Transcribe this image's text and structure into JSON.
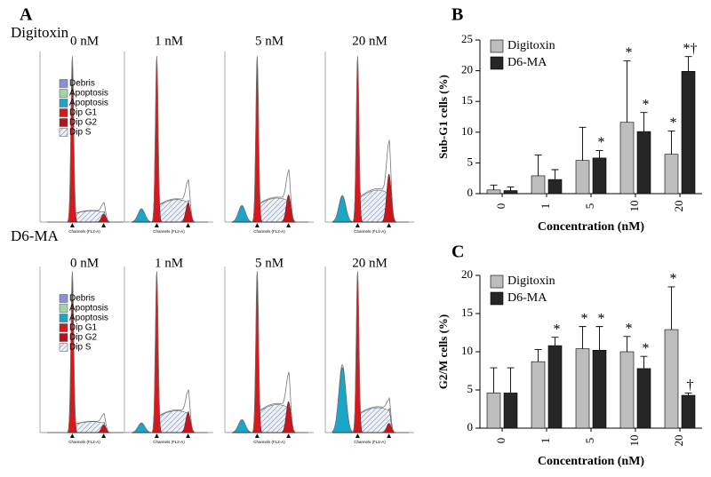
{
  "panel_a": {
    "label": "A",
    "rows": [
      {
        "name": "Digitoxin",
        "panels": [
          "0 nM",
          "1 nM",
          "5 nM",
          "20  nM"
        ]
      },
      {
        "name": "D6-MA",
        "panels": [
          "0 nM",
          "1 nM",
          "5 nM",
          "20  nM"
        ]
      }
    ],
    "legend": [
      "Debris",
      "Apoptosis",
      "Apoptosis",
      "Dip G1",
      "Dip G2",
      "Dip S"
    ],
    "axis_label": "Channels (FL2-A)"
  },
  "chart_data": [
    {
      "type": "bar",
      "panel_label": "B",
      "y_label": "Sub-G1 cells (%)",
      "x_label": "Concentration (nM)",
      "categories": [
        "0",
        "1",
        "5",
        "10",
        "20"
      ],
      "ylim": [
        0,
        25
      ],
      "yticks": [
        0,
        5,
        10,
        15,
        20,
        25
      ],
      "series": [
        {
          "name": "Digitoxin",
          "color": "#bdbdbd",
          "values": [
            0.6,
            2.9,
            5.4,
            11.6,
            6.4
          ],
          "errors": [
            0.8,
            3.4,
            5.4,
            10.0,
            3.8
          ],
          "annotations": [
            null,
            null,
            null,
            "*",
            "*"
          ]
        },
        {
          "name": "D6-MA",
          "color": "#262626",
          "values": [
            0.5,
            2.3,
            5.8,
            10.1,
            19.9
          ],
          "errors": [
            0.6,
            1.6,
            1.2,
            3.1,
            2.4
          ],
          "annotations": [
            null,
            null,
            "*",
            "*",
            "*†"
          ]
        }
      ]
    },
    {
      "type": "bar",
      "panel_label": "C",
      "y_label": "G2/M cells (%)",
      "x_label": "Concentration (nM)",
      "categories": [
        "0",
        "1",
        "5",
        "10",
        "20"
      ],
      "ylim": [
        0,
        20
      ],
      "yticks": [
        0,
        5,
        10,
        15,
        20
      ],
      "series": [
        {
          "name": "Digitoxin",
          "color": "#bdbdbd",
          "values": [
            4.6,
            8.7,
            10.4,
            10.0,
            12.9
          ],
          "errors": [
            3.3,
            1.6,
            2.9,
            2.0,
            5.6
          ],
          "annotations": [
            null,
            null,
            "*",
            "*",
            "*"
          ]
        },
        {
          "name": "D6-MA",
          "color": "#262626",
          "values": [
            4.6,
            10.8,
            10.2,
            7.8,
            4.3
          ],
          "errors": [
            3.3,
            1.1,
            3.1,
            1.6,
            0.3
          ],
          "annotations": [
            null,
            "*",
            "*",
            "*",
            "†"
          ]
        }
      ]
    }
  ]
}
